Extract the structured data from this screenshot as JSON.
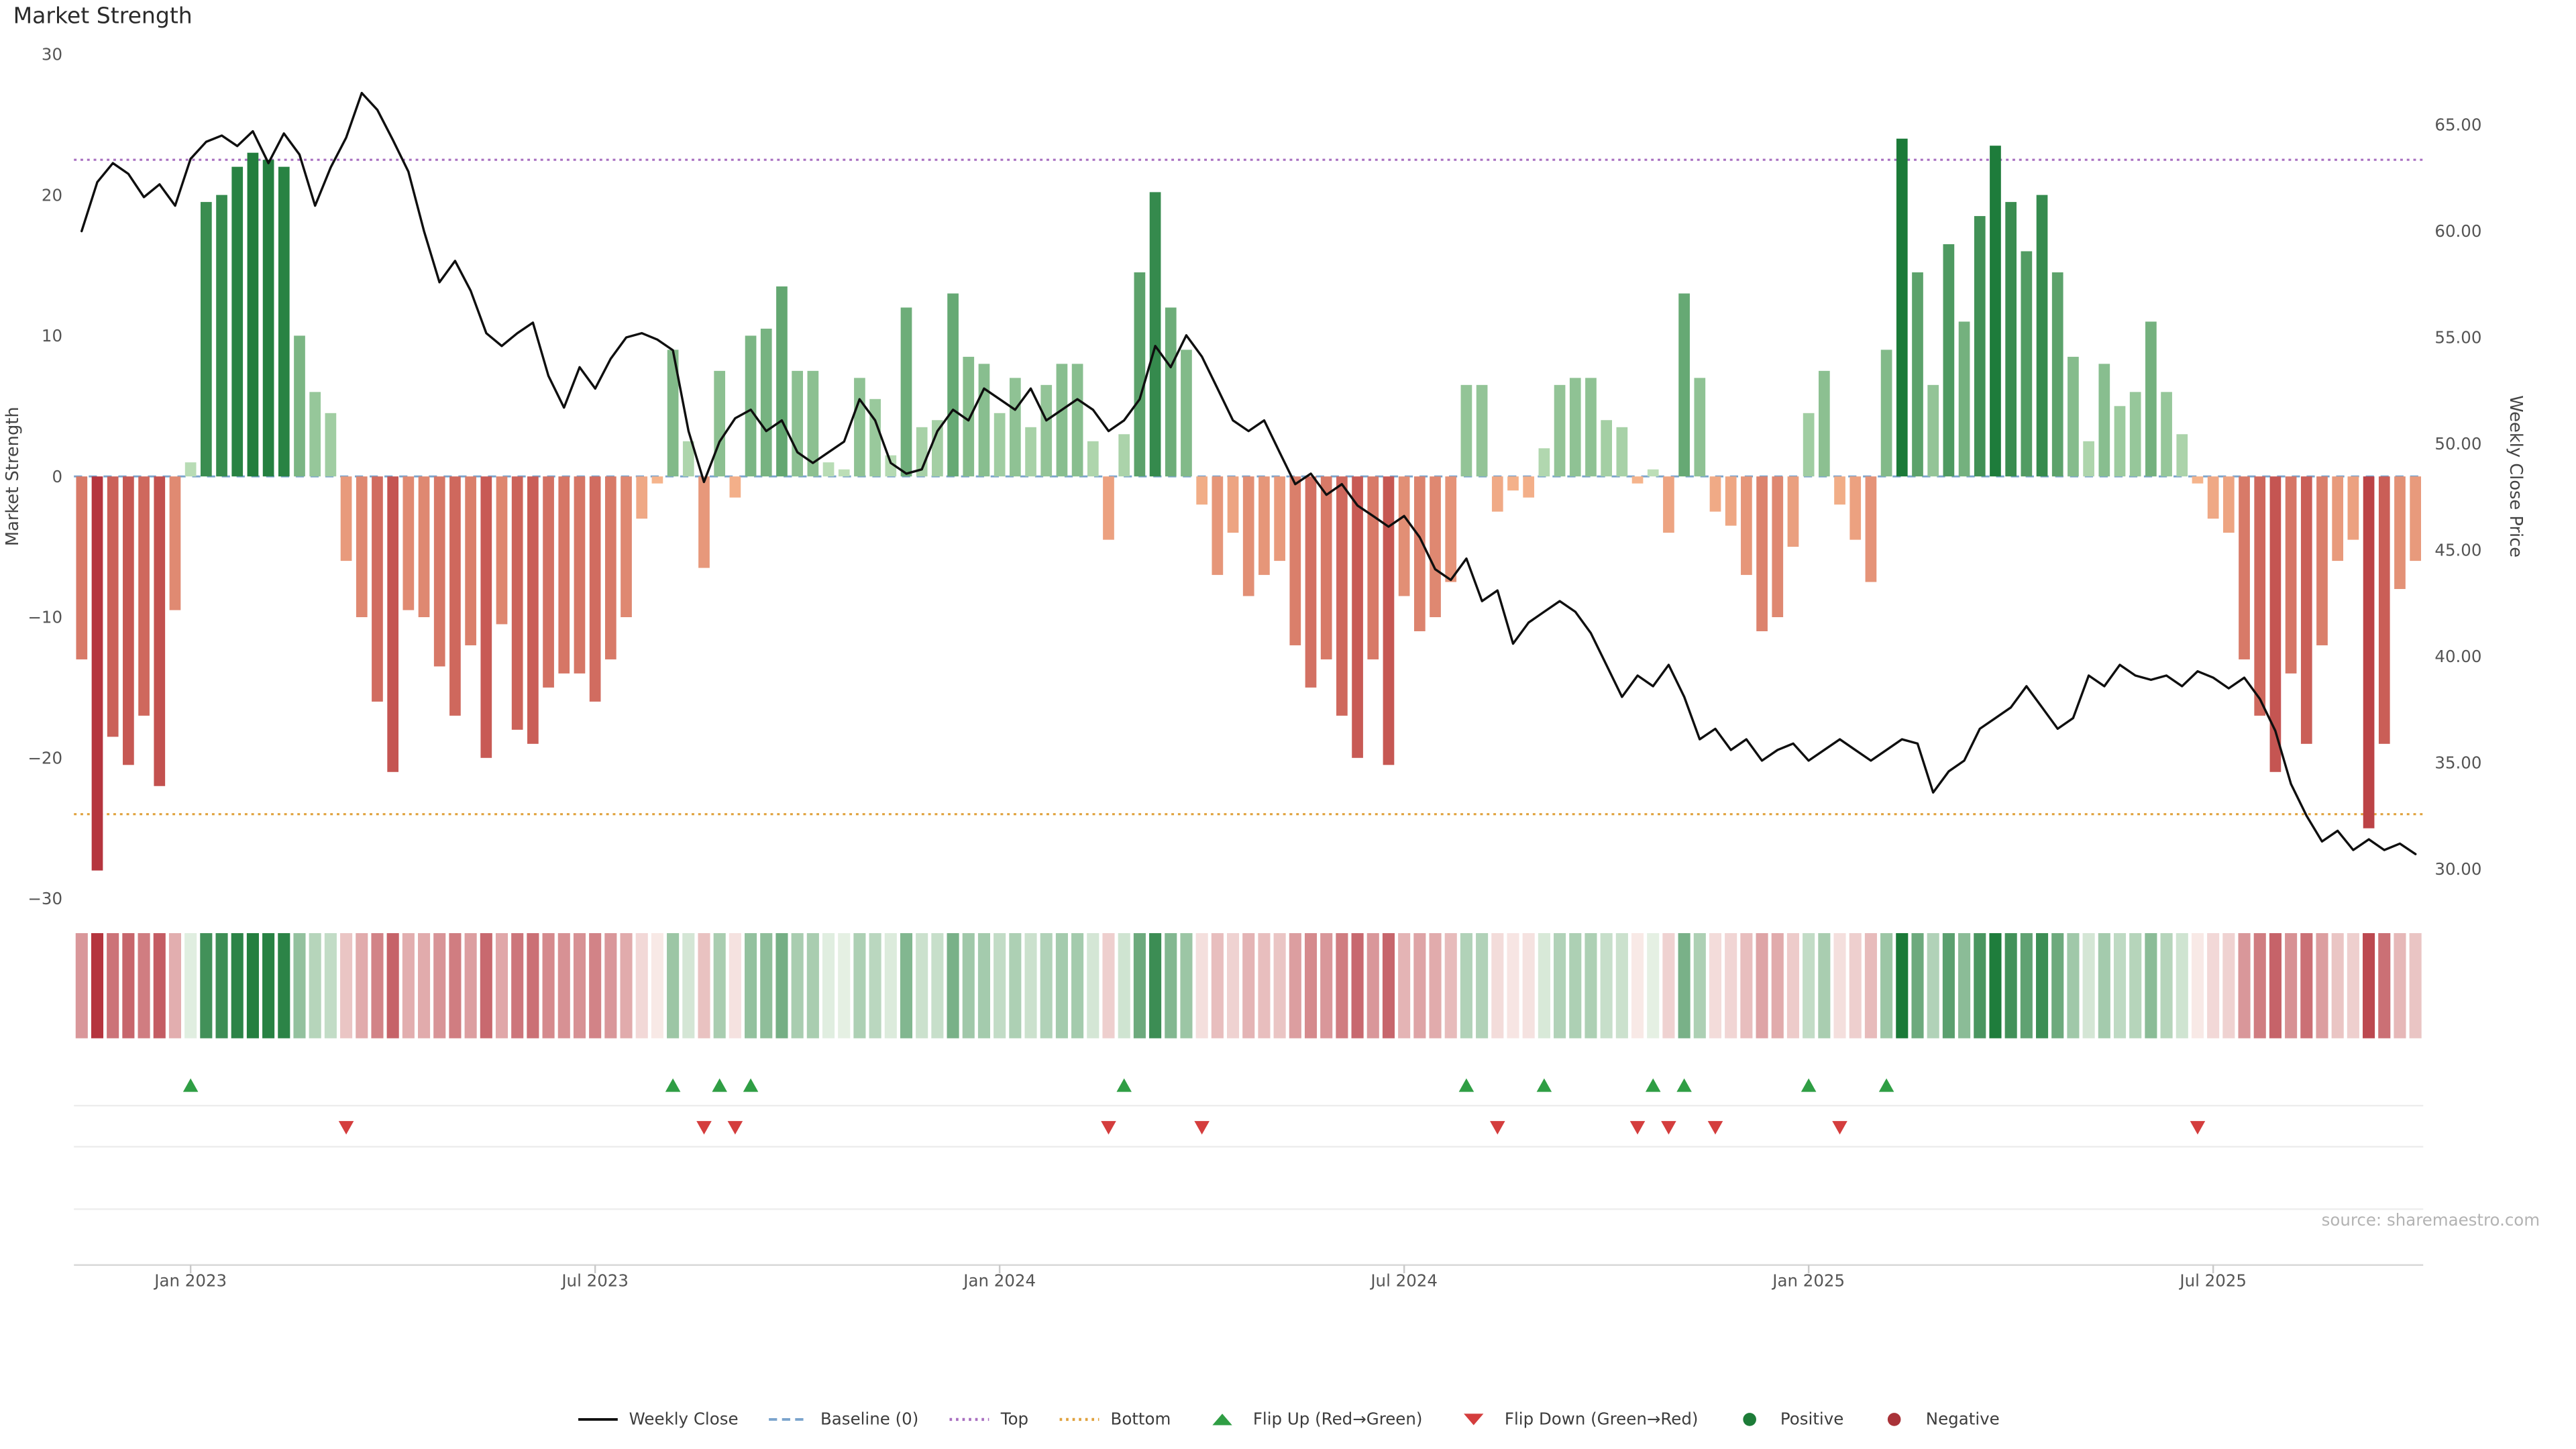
{
  "title": "Market Strength",
  "source": "source: sharemaestro.com",
  "colors": {
    "positive_strong": "#1b7a38",
    "positive_weak": "#bfe0ba",
    "negative_strong": "#b5353e",
    "negative_weak": "#f6b68d",
    "heat_positive_weak": "#e9f3e7",
    "heat_negative_weak": "#f9ece9",
    "line": "#0f0f0f",
    "baseline": "#7aa3cc",
    "top": "#a86fc0",
    "bottom": "#e0a23e",
    "flip_up": "#2f9e44",
    "flip_down": "#d43d3d",
    "positive_dot": "#1d7c38",
    "negative_dot": "#a93238"
  },
  "chart_data": {
    "type": "bar+line+heatmap",
    "x_unit": "weeks",
    "title": "Market Strength",
    "baseline": 0,
    "top": 22.5,
    "bottom": -24,
    "left_axis": {
      "label": "Market Strength",
      "min": -30,
      "max": 30,
      "ticks": [
        {
          "v": 30,
          "label": "30"
        },
        {
          "v": 20,
          "label": "20"
        },
        {
          "v": 10,
          "label": "10"
        },
        {
          "v": 0,
          "label": "0"
        },
        {
          "v": -10,
          "label": "−10"
        },
        {
          "v": -20,
          "label": "−20"
        },
        {
          "v": -30,
          "label": "−30"
        }
      ]
    },
    "right_axis": {
      "label": "Weekly Close Price",
      "ticks": [
        {
          "v": 65,
          "label": "65.00"
        },
        {
          "v": 60,
          "label": "60.00"
        },
        {
          "v": 55,
          "label": "55.00"
        },
        {
          "v": 50,
          "label": "50.00"
        },
        {
          "v": 45,
          "label": "45.00"
        },
        {
          "v": 40,
          "label": "40.00"
        },
        {
          "v": 35,
          "label": "35.00"
        },
        {
          "v": 30,
          "label": "30.00"
        }
      ]
    },
    "x_ticks": [
      {
        "i": 7,
        "label": "Jan 2023"
      },
      {
        "i": 33,
        "label": "Jul 2023"
      },
      {
        "i": 59,
        "label": "Jan 2024"
      },
      {
        "i": 85,
        "label": "Jul 2024"
      },
      {
        "i": 111,
        "label": "Jan 2025"
      },
      {
        "i": 137,
        "label": "Jul 2025"
      }
    ],
    "strength": [
      -13,
      -28,
      -18.5,
      -20.5,
      -17,
      -22,
      -9.5,
      1,
      19.5,
      20,
      22,
      23,
      22.5,
      22,
      10,
      6,
      4.5,
      -6,
      -10,
      -16,
      -21,
      -9.5,
      -10,
      -13.5,
      -17,
      -12,
      -20,
      -10.5,
      -18,
      -19,
      -15,
      -14,
      -14,
      -16,
      -13,
      -10,
      -3,
      -0.5,
      9,
      2.5,
      -6.5,
      7.5,
      -1.5,
      10,
      10.5,
      13.5,
      7.5,
      7.5,
      1,
      0.5,
      7,
      5.5,
      1.5,
      12,
      3.5,
      4,
      13,
      8.5,
      8,
      4.5,
      7,
      3.5,
      6.5,
      8,
      8,
      2.5,
      -4.5,
      3,
      14.5,
      20.2,
      12,
      9,
      -2,
      -7,
      -4,
      -8.5,
      -7,
      -6,
      -12,
      -15,
      -13,
      -17,
      -20,
      -13,
      -20.5,
      -8.5,
      -11,
      -10,
      -7.5,
      6.5,
      6.5,
      -2.5,
      -1,
      -1.5,
      2,
      6.5,
      7,
      7,
      4,
      3.5,
      -0.5,
      0.5,
      -4,
      13,
      7,
      -2.5,
      -3.5,
      -7,
      -11,
      -10,
      -5,
      4.5,
      7.5,
      -2,
      -4.5,
      -7.5,
      9,
      24,
      14.5,
      6.5,
      16.5,
      11,
      18.5,
      23.5,
      19.5,
      16,
      20,
      14.5,
      8.5,
      2.5,
      8,
      5,
      6,
      11,
      6,
      3,
      -0.5,
      -3,
      -4,
      -13,
      -17,
      -21,
      -14,
      -19,
      -12,
      -6,
      -4.5,
      -25,
      -19,
      -8,
      -6
    ],
    "close": [
      60,
      62.3,
      63.2,
      62.7,
      61.6,
      62.2,
      61.2,
      63.4,
      64.2,
      64.5,
      64,
      64.7,
      63.2,
      64.6,
      63.6,
      61.2,
      63,
      64.4,
      66.5,
      65.7,
      64.3,
      62.8,
      60,
      57.6,
      58.6,
      57.2,
      55.2,
      54.6,
      55.2,
      55.7,
      53.2,
      51.7,
      53.6,
      52.6,
      54,
      55,
      55.2,
      54.9,
      54.4,
      50.6,
      48.2,
      50.1,
      51.2,
      51.6,
      50.6,
      51.1,
      49.6,
      49.1,
      49.6,
      50.1,
      52.1,
      51.1,
      49.1,
      48.6,
      48.8,
      50.6,
      51.6,
      51.1,
      52.6,
      52.1,
      51.6,
      52.6,
      51.1,
      51.6,
      52.1,
      51.6,
      50.6,
      51.1,
      52.1,
      54.6,
      53.6,
      55.1,
      54.1,
      52.6,
      51.1,
      50.6,
      51.1,
      49.6,
      48.1,
      48.6,
      47.6,
      48.1,
      47.1,
      46.6,
      46.1,
      46.6,
      45.6,
      44.1,
      43.6,
      44.6,
      42.6,
      43.1,
      40.6,
      41.6,
      42.1,
      42.6,
      42.1,
      41.1,
      39.6,
      38.1,
      39.1,
      38.6,
      39.6,
      38.1,
      36.1,
      36.6,
      35.6,
      36.1,
      35.1,
      35.6,
      35.9,
      35.1,
      35.6,
      36.1,
      35.6,
      35.1,
      35.6,
      36.1,
      35.9,
      33.6,
      34.6,
      35.1,
      36.6,
      37.1,
      37.6,
      38.6,
      37.6,
      36.6,
      37.1,
      39.1,
      38.6,
      39.6,
      39.1,
      38.9,
      39.1,
      38.6,
      39.3,
      39,
      38.5,
      39,
      38,
      36.5,
      34,
      32.5,
      31.3,
      31.8,
      30.9,
      31.4,
      30.9,
      31.2,
      30.7
    ],
    "flip_up_weeks": [
      7,
      38,
      41,
      43,
      67,
      89,
      94,
      101,
      103,
      111,
      116
    ],
    "flip_down_weeks": [
      17,
      40,
      42,
      66,
      72,
      91,
      100,
      102,
      105,
      113,
      136
    ]
  },
  "legend": [
    {
      "name": "weekly-close",
      "label": "Weekly Close",
      "swatch": "line",
      "color": "#0f0f0f"
    },
    {
      "name": "baseline",
      "label": "Baseline (0)",
      "swatch": "dashed",
      "color": "#7aa3cc"
    },
    {
      "name": "top",
      "label": "Top",
      "swatch": "dotted",
      "color": "#a86fc0"
    },
    {
      "name": "bottom",
      "label": "Bottom",
      "swatch": "dotted",
      "color": "#e0a23e"
    },
    {
      "name": "flip-up",
      "label": "Flip Up (Red→Green)",
      "swatch": "triangle-up",
      "color": "#2f9e44"
    },
    {
      "name": "flip-down",
      "label": "Flip Down (Green→Red)",
      "swatch": "triangle-down",
      "color": "#d43d3d"
    },
    {
      "name": "positive",
      "label": "Positive",
      "swatch": "dot",
      "color": "#1d7c38"
    },
    {
      "name": "negative",
      "label": "Negative",
      "swatch": "dot",
      "color": "#a93238"
    }
  ]
}
